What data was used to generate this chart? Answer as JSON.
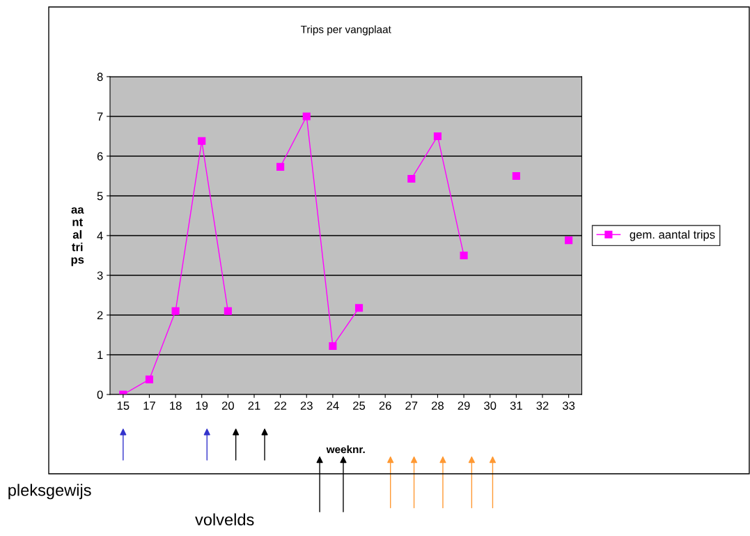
{
  "chart_data": {
    "type": "line",
    "title": "Trips per vangplaat",
    "xlabel": "weeknr.",
    "ylabel": "aa\nnt\nal\ntri\nps",
    "categories": [
      "15",
      "17",
      "18",
      "19",
      "20",
      "21",
      "22",
      "23",
      "24",
      "25",
      "26",
      "27",
      "28",
      "29",
      "30",
      "31",
      "32",
      "33"
    ],
    "series": [
      {
        "name": "gem. aantal trips",
        "color": "#ff00ff",
        "values": [
          0,
          0.38,
          2.1,
          6.38,
          2.1,
          null,
          5.73,
          7.0,
          1.22,
          2.18,
          null,
          5.43,
          6.5,
          3.5,
          null,
          5.5,
          null,
          3.88
        ]
      }
    ],
    "ylim": [
      0,
      8
    ],
    "yticks": [
      0,
      1,
      2,
      3,
      4,
      5,
      6,
      7,
      8
    ],
    "grid": "y",
    "legend": "right",
    "marker": "square",
    "line_style": "solid",
    "annotations": [
      "pleksgewijs",
      "volvelds"
    ]
  }
}
